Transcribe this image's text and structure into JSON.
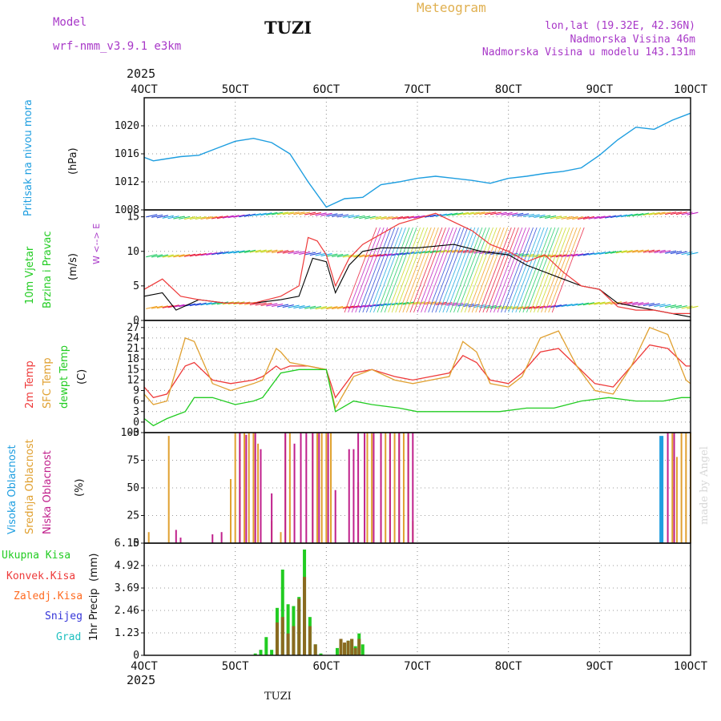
{
  "header": {
    "model_label": "Model",
    "model_name": "wrf-nmm_v3.9.1 e3km",
    "station": "TUZI",
    "title": "Meteogram",
    "coords": "lon,lat (19.32E, 42.36N)",
    "altitude": "Nadmorska Visina 46m",
    "model_altitude": "Nadmorska Visina u modelu 143.131m",
    "footer_station": "TUZI",
    "watermark": "made by Angel"
  },
  "colors": {
    "pressure": "#1e9ee0",
    "temp": "#ee3a3a",
    "sfc_temp": "#e0a030",
    "dewpt": "#22cc22",
    "high_cloud": "#1e9ee0",
    "mid_cloud": "#e0a030",
    "low_cloud": "#c0208c",
    "total_precip": "#22cc22",
    "conv_precip": "#ee3a3a",
    "frz_precip": "#ff6a20",
    "snow": "#3434d8",
    "hail": "#20c0c0",
    "title": "#e0b050",
    "purple_text": "#a838c8"
  },
  "chart_data": [
    {
      "type": "line",
      "name": "pressure",
      "ylabel_main": "Pritisak na nivou mora",
      "ylabel_unit": "(hPa)",
      "x_start_label": "2025",
      "categories": [
        "4OCT",
        "5OCT",
        "6OCT",
        "7OCT",
        "8OCT",
        "9OCT",
        "10OCT"
      ],
      "ylim": [
        1008,
        1024
      ],
      "yticks": [
        "1008",
        "1012",
        "1016",
        "1020"
      ],
      "x": [
        0,
        0.1,
        0.2,
        0.4,
        0.6,
        0.8,
        1.0,
        1.2,
        1.4,
        1.6,
        1.8,
        2.0,
        2.2,
        2.4,
        2.6,
        2.8,
        3.0,
        3.2,
        3.4,
        3.6,
        3.8,
        4.0,
        4.2,
        4.4,
        4.6,
        4.8,
        5.0,
        5.2,
        5.4,
        5.6,
        5.8,
        6.0
      ],
      "values": [
        1015.5,
        1015.0,
        1015.2,
        1015.6,
        1015.8,
        1016.8,
        1017.8,
        1018.2,
        1017.6,
        1016.0,
        1012.0,
        1008.4,
        1009.6,
        1009.8,
        1011.6,
        1012.0,
        1012.5,
        1012.8,
        1012.5,
        1012.2,
        1011.8,
        1012.5,
        1012.8,
        1013.2,
        1013.5,
        1014.0,
        1015.8,
        1018.0,
        1019.8,
        1019.5,
        1020.8,
        1021.8
      ]
    },
    {
      "type": "line",
      "name": "wind",
      "ylabel_main": "10m Vjetar",
      "ylabel_sub": "Brzina i Pravac",
      "ylabel_unit": "(m/s)",
      "compass": "W <--> E",
      "ylim": [
        0,
        16
      ],
      "yticks": [
        "0",
        "5",
        "10",
        "15"
      ],
      "series": [
        {
          "name": "wind speed",
          "x": [
            0,
            0.2,
            0.35,
            0.6,
            0.9,
            1.2,
            1.5,
            1.7,
            1.85,
            2.0,
            2.1,
            2.25,
            2.4,
            2.6,
            3.0,
            3.4,
            3.7,
            4.0,
            4.2,
            4.4,
            4.6,
            4.8,
            5.0,
            5.2,
            5.4,
            5.6,
            5.8,
            6.0
          ],
          "values": [
            3.5,
            4.0,
            1.5,
            3.0,
            2.5,
            2.5,
            3.0,
            3.5,
            9.0,
            8.5,
            4.0,
            8.0,
            10.0,
            10.5,
            10.5,
            11.0,
            10.0,
            9.5,
            8.0,
            7.0,
            6.0,
            5.0,
            4.5,
            2.5,
            2.0,
            1.5,
            1.0,
            0.5
          ]
        },
        {
          "name": "wind gust",
          "x": [
            0,
            0.2,
            0.4,
            0.6,
            0.9,
            1.2,
            1.5,
            1.7,
            1.8,
            1.9,
            2.0,
            2.1,
            2.25,
            2.4,
            2.8,
            3.2,
            3.6,
            3.8,
            4.0,
            4.2,
            4.4,
            4.6,
            4.8,
            5.0,
            5.2,
            5.4,
            5.6,
            5.8,
            6.0
          ],
          "values": [
            4.5,
            6.0,
            3.5,
            3.0,
            2.5,
            2.5,
            3.5,
            5.0,
            12.0,
            11.5,
            9.5,
            5.0,
            9.0,
            11.0,
            14.0,
            15.5,
            13.0,
            11.0,
            10.0,
            8.5,
            9.5,
            7.0,
            5.0,
            4.5,
            2.0,
            1.5,
            1.5,
            1.0,
            1.0
          ]
        }
      ]
    },
    {
      "type": "line",
      "name": "temperature",
      "ylabel_a": "2m Temp",
      "ylabel_b": "SFC Temp",
      "ylabel_c": "dewpt Temp",
      "ylabel_unit": "(C)",
      "ylim": [
        -3,
        29
      ],
      "yticks": [
        "-3",
        "0",
        "3",
        "6",
        "9",
        "12",
        "15",
        "18",
        "21",
        "24",
        "27"
      ],
      "series": [
        {
          "name": "2m Temp",
          "x": [
            0,
            0.1,
            0.25,
            0.45,
            0.55,
            0.75,
            0.95,
            1.2,
            1.3,
            1.45,
            1.5,
            1.6,
            1.8,
            2.0,
            2.1,
            2.3,
            2.5,
            2.75,
            2.95,
            3.15,
            3.35,
            3.5,
            3.65,
            3.8,
            4.0,
            4.15,
            4.35,
            4.55,
            4.75,
            4.95,
            5.15,
            5.35,
            5.55,
            5.75,
            5.95,
            6.0
          ],
          "values": [
            10,
            7,
            8,
            16,
            17,
            12,
            11,
            12,
            13,
            16,
            15,
            16,
            16,
            15,
            7,
            14,
            15,
            13,
            12,
            13,
            14,
            19,
            17,
            12,
            11,
            14,
            20,
            21,
            16,
            11,
            10,
            16,
            22,
            21,
            16,
            16
          ]
        },
        {
          "name": "SFC Temp",
          "x": [
            0,
            0.1,
            0.25,
            0.45,
            0.55,
            0.75,
            0.95,
            1.2,
            1.3,
            1.45,
            1.5,
            1.6,
            1.8,
            2.0,
            2.1,
            2.3,
            2.5,
            2.75,
            2.95,
            3.15,
            3.35,
            3.5,
            3.65,
            3.8,
            4.0,
            4.15,
            4.35,
            4.55,
            4.75,
            4.95,
            5.15,
            5.35,
            5.55,
            5.75,
            5.95,
            6.0
          ],
          "values": [
            8,
            5,
            6,
            24,
            23,
            11,
            9,
            11,
            12,
            21,
            20,
            17,
            16,
            15,
            4,
            13,
            15,
            12,
            11,
            12,
            13,
            23,
            20,
            11,
            10,
            13,
            24,
            26,
            16,
            9,
            8,
            16,
            27,
            25,
            12,
            11
          ]
        },
        {
          "name": "dewpt Temp",
          "x": [
            0,
            0.1,
            0.25,
            0.35,
            0.45,
            0.55,
            0.75,
            1.0,
            1.2,
            1.3,
            1.5,
            1.7,
            2.0,
            2.1,
            2.3,
            2.5,
            2.8,
            3.0,
            3.3,
            3.6,
            3.9,
            4.2,
            4.5,
            4.8,
            5.1,
            5.4,
            5.7,
            5.9,
            6.0
          ],
          "values": [
            1,
            -1,
            1,
            2,
            3,
            7,
            7,
            5,
            6,
            7,
            14,
            15,
            15,
            3,
            6,
            5,
            4,
            3,
            3,
            3,
            3,
            4,
            4,
            6,
            7,
            6,
            6,
            7,
            7
          ]
        }
      ]
    },
    {
      "type": "bar",
      "name": "cloud",
      "ylabel_a": "Visoka Oblacnost",
      "ylabel_b": "Srednja Oblacnost",
      "ylabel_c": "Niska Oblacnost",
      "ylabel_unit": "(%)",
      "ylim": [
        0,
        100
      ],
      "yticks": [
        "0",
        "25",
        "50",
        "75",
        "100"
      ],
      "series": [
        {
          "name": "Visoka Oblacnost",
          "x": [
            5.68
          ],
          "values": [
            97
          ]
        },
        {
          "name": "Srednja Oblacnost",
          "x": [
            0.05,
            0.27,
            0.95,
            1.0,
            1.05,
            1.1,
            1.15,
            1.2,
            1.25,
            1.4,
            1.5,
            1.55,
            1.6,
            1.85,
            1.9,
            1.95,
            2.0,
            2.05,
            2.35,
            2.45,
            2.5,
            2.6,
            2.65,
            2.7,
            2.75,
            2.8,
            2.85,
            2.9,
            2.95,
            5.8,
            5.85,
            5.9,
            5.95,
            6.0
          ],
          "values": [
            10,
            97,
            58,
            100,
            100,
            100,
            100,
            100,
            90,
            20,
            10,
            100,
            100,
            100,
            100,
            100,
            100,
            100,
            55,
            100,
            100,
            100,
            100,
            100,
            100,
            100,
            100,
            100,
            20,
            100,
            78,
            100,
            100,
            100
          ]
        },
        {
          "name": "Niska Oblacnost",
          "x": [
            0.35,
            0.4,
            0.75,
            0.85,
            1.05,
            1.12,
            1.22,
            1.28,
            1.4,
            1.55,
            1.65,
            1.72,
            1.78,
            1.85,
            1.92,
            2.02,
            2.1,
            2.25,
            2.3,
            2.35,
            2.42,
            2.52,
            2.6,
            2.7,
            2.8,
            2.9,
            2.95,
            5.75,
            5.82
          ],
          "values": [
            12,
            5,
            8,
            10,
            100,
            98,
            100,
            85,
            45,
            100,
            90,
            100,
            100,
            100,
            100,
            100,
            48,
            85,
            85,
            100,
            100,
            100,
            100,
            100,
            100,
            100,
            100,
            100,
            100
          ]
        }
      ]
    },
    {
      "type": "bar",
      "name": "precipitation",
      "ylabel_main": "1hr Precip",
      "ylabel_unit": "(mm)",
      "legend": [
        "Ukupna Kisa",
        "Konvek.Kisa",
        "Zaledj.Kisa",
        "Snijeg",
        "Grad"
      ],
      "ylim": [
        0,
        6.15
      ],
      "yticks": [
        "0",
        "1.23",
        "2.46",
        "3.69",
        "4.92",
        "6.15"
      ],
      "x_end_label": "2025",
      "series": [
        {
          "name": "Ukupna Kisa",
          "x": [
            1.22,
            1.28,
            1.34,
            1.4,
            1.46,
            1.52,
            1.58,
            1.64,
            1.7,
            1.76,
            1.82,
            1.88,
            1.94,
            2.12,
            2.16,
            2.2,
            2.24,
            2.28,
            2.32,
            2.36,
            2.4
          ],
          "values": [
            0.1,
            0.3,
            1.0,
            0.3,
            2.6,
            4.7,
            2.8,
            2.7,
            3.2,
            5.8,
            2.1,
            0.6,
            0.1,
            0.4,
            0.9,
            0.6,
            0.8,
            0.9,
            0.5,
            1.2,
            0.6
          ]
        },
        {
          "name": "Konvek.Kisa",
          "x": [
            1.46,
            1.52,
            1.58,
            1.64,
            1.7,
            1.76,
            1.82,
            1.88,
            2.16,
            2.2,
            2.24,
            2.28,
            2.32,
            2.36
          ],
          "values": [
            1.8,
            2.1,
            1.2,
            1.6,
            3.1,
            4.3,
            1.6,
            0.6,
            0.9,
            0.7,
            0.8,
            0.9,
            0.4,
            0.9
          ]
        }
      ]
    }
  ]
}
